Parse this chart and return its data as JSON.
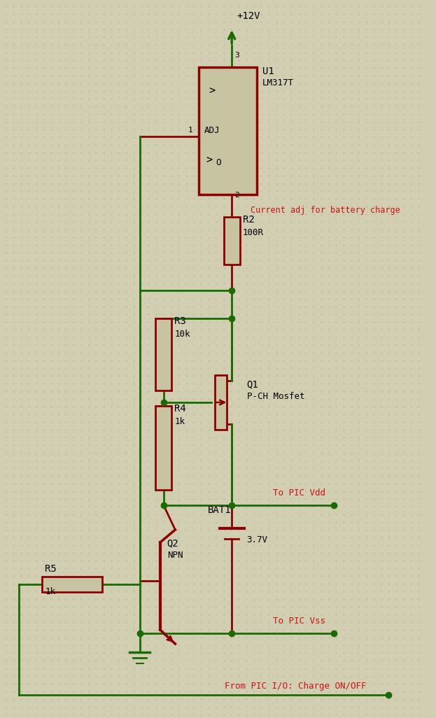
{
  "bg_color": "#d2ceb2",
  "wire_color": "#1a6b00",
  "comp_color": "#8b0000",
  "text_color": "#000000",
  "red_label_color": "#cc1111",
  "grid_color": "#bab89e",
  "figsize": [
    6.23,
    10.26
  ],
  "dpi": 100,
  "labels": {
    "v12": "+12V",
    "u1_ref": "U1",
    "u1_part": "LM317T",
    "u1_inner_top": ">",
    "u1_inner_bot": ">O",
    "u1_adj": "ADJ",
    "pin1": "1",
    "pin2": "2",
    "pin3": "3",
    "r2_ref": "R2",
    "r2_val": "100R",
    "r2_label": "Current adj for battery charge",
    "r3_ref": "R3",
    "r3_val": "10k",
    "q1_ref": "Q1",
    "q1_part": "P-CH Mosfet",
    "r4_ref": "R4",
    "r4_val": "1k",
    "bat_ref": "BAT1",
    "bat_val": "3.7V",
    "q2_ref": "Q2",
    "q2_part": "NPN",
    "r5_ref": "R5",
    "r5_val": "1k",
    "vdd_label": "To PIC Vdd",
    "vss_label": "To PIC Vss",
    "pic_label": "From PIC I/O: Charge ON/OFF"
  }
}
